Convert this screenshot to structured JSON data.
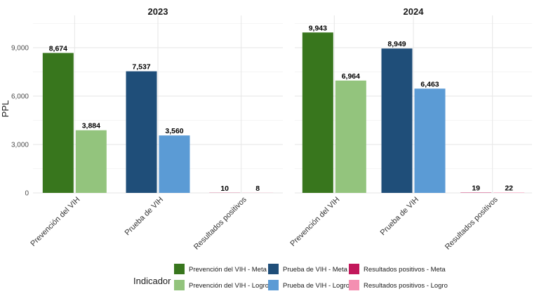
{
  "chart_data": {
    "type": "bar",
    "ylabel": "PPL",
    "ylim": [
      0,
      11000
    ],
    "yticks": [
      0,
      3000,
      6000,
      9000
    ],
    "ytick_labels": [
      "0",
      "3,000",
      "6,000",
      "9,000"
    ],
    "categories": [
      "Prevención del VIH",
      "Prueba de VIH",
      "Resultados positivos"
    ],
    "legend": {
      "title": "Indicador",
      "position": "bottom",
      "entries": [
        {
          "name": "Prevención del VIH - Meta",
          "color": "#38761d"
        },
        {
          "name": "Prevención del VIH - Logro",
          "color": "#93c47d"
        },
        {
          "name": "Prueba de VIH - Meta",
          "color": "#1f4e79"
        },
        {
          "name": "Prueba de VIH - Logro",
          "color": "#5b9bd5"
        },
        {
          "name": "Resultados positivos - Meta",
          "color": "#c2185b"
        },
        {
          "name": "Resultados positivos - Logro",
          "color": "#f48fb1"
        }
      ]
    },
    "panels": [
      {
        "title": "2023",
        "bars": [
          {
            "category": "Prevención del VIH",
            "series": "Prevención del VIH - Meta",
            "value": 8674,
            "label": "8,674",
            "color": "#38761d"
          },
          {
            "category": "Prevención del VIH",
            "series": "Prevención del VIH - Logro",
            "value": 3884,
            "label": "3,884",
            "color": "#93c47d"
          },
          {
            "category": "Prueba de VIH",
            "series": "Prueba de VIH - Meta",
            "value": 7537,
            "label": "7,537",
            "color": "#1f4e79"
          },
          {
            "category": "Prueba de VIH",
            "series": "Prueba de VIH - Logro",
            "value": 3560,
            "label": "3,560",
            "color": "#5b9bd5"
          },
          {
            "category": "Resultados positivos",
            "series": "Resultados positivos - Meta",
            "value": 10,
            "label": "10",
            "color": "#c2185b"
          },
          {
            "category": "Resultados positivos",
            "series": "Resultados positivos - Logro",
            "value": 8,
            "label": "8",
            "color": "#f48fb1"
          }
        ]
      },
      {
        "title": "2024",
        "bars": [
          {
            "category": "Prevención del VIH",
            "series": "Prevención del VIH - Meta",
            "value": 9943,
            "label": "9,943",
            "color": "#38761d"
          },
          {
            "category": "Prevención del VIH",
            "series": "Prevención del VIH - Logro",
            "value": 6964,
            "label": "6,964",
            "color": "#93c47d"
          },
          {
            "category": "Prueba de VIH",
            "series": "Prueba de VIH - Meta",
            "value": 8949,
            "label": "8,949",
            "color": "#1f4e79"
          },
          {
            "category": "Prueba de VIH",
            "series": "Prueba de VIH - Logro",
            "value": 6463,
            "label": "6,463",
            "color": "#5b9bd5"
          },
          {
            "category": "Resultados positivos",
            "series": "Resultados positivos - Meta",
            "value": 19,
            "label": "19",
            "color": "#c2185b"
          },
          {
            "category": "Resultados positivos",
            "series": "Resultados positivos - Logro",
            "value": 22,
            "label": "22",
            "color": "#f48fb1"
          }
        ]
      }
    ]
  }
}
